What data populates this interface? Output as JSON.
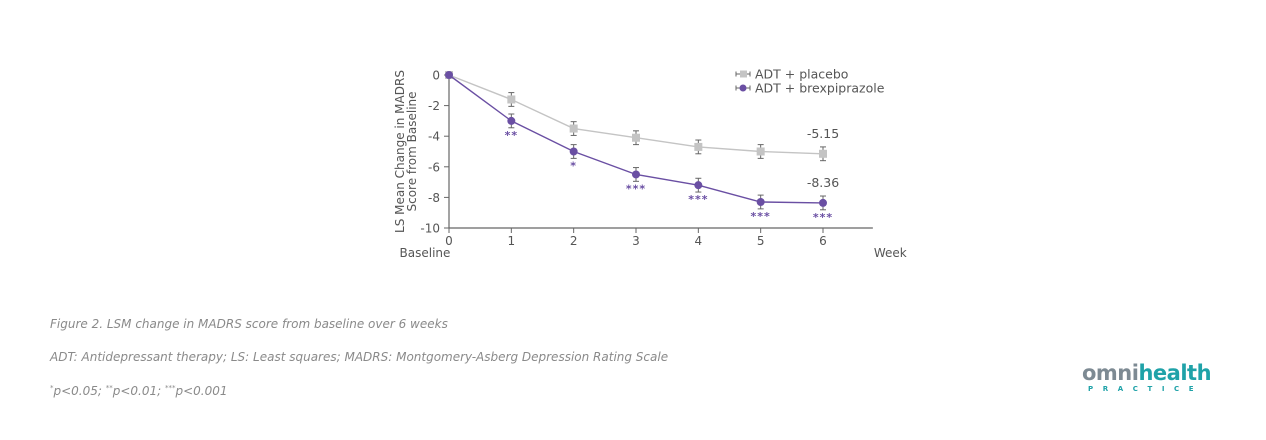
{
  "chart_data": {
    "type": "line",
    "title": "",
    "xlabel": "Week",
    "x_origin_label": "Baseline",
    "ylabel": "LS Mean Change in MADRS Score from Baseline",
    "ylabel_lines": [
      "LS Mean Change in MADRS",
      "Score from Baseline"
    ],
    "x": [
      0,
      1,
      2,
      3,
      4,
      5,
      6
    ],
    "x_tick_labels": [
      "0",
      "1",
      "2",
      "3",
      "4",
      "5",
      "6"
    ],
    "y_ticks": [
      0,
      -2,
      -4,
      -6,
      -8,
      -10
    ],
    "y_tick_labels": [
      "0",
      "-2",
      "-4",
      "-6",
      "-8",
      "-10"
    ],
    "xlim": [
      0,
      6.8
    ],
    "ylim": [
      -10,
      0
    ],
    "grid": false,
    "legend_position": "top-right",
    "series": [
      {
        "name": "ADT + placebo",
        "color": "#c4c4c4",
        "marker": "square",
        "values": [
          0,
          -1.6,
          -3.5,
          -4.1,
          -4.7,
          -5.0,
          -5.15
        ],
        "error": [
          0,
          0.45,
          0.45,
          0.45,
          0.45,
          0.45,
          0.45
        ],
        "significance": [
          "",
          "",
          "",
          "",
          "",
          "",
          ""
        ],
        "end_label": "-5.15"
      },
      {
        "name": "ADT + brexpiprazole",
        "color": "#6a4fa3",
        "marker": "circle",
        "values": [
          0,
          -3.0,
          -5.0,
          -6.5,
          -7.2,
          -8.3,
          -8.36
        ],
        "error": [
          0,
          0.45,
          0.45,
          0.45,
          0.45,
          0.45,
          0.45
        ],
        "significance": [
          "",
          "**",
          "*",
          "***",
          "***",
          "***",
          "***"
        ],
        "end_label": "-8.36"
      }
    ]
  },
  "captions": {
    "figure": "Figure 2. LSM change in MADRS score from baseline over 6 weeks",
    "abbreviations": "ADT: Antidepressant therapy; LS: Least squares; MADRS: Montgomery-Asberg Depression Rating Scale",
    "p1_mark": "*",
    "p1_text": "p<0.05; ",
    "p2_mark": "**",
    "p2_text": "p<0.01; ",
    "p3_mark": "***",
    "p3_text": "p<0.001"
  },
  "logo": {
    "brand_left": "omni",
    "brand_right": "health",
    "tagline": "PRACTICE"
  }
}
